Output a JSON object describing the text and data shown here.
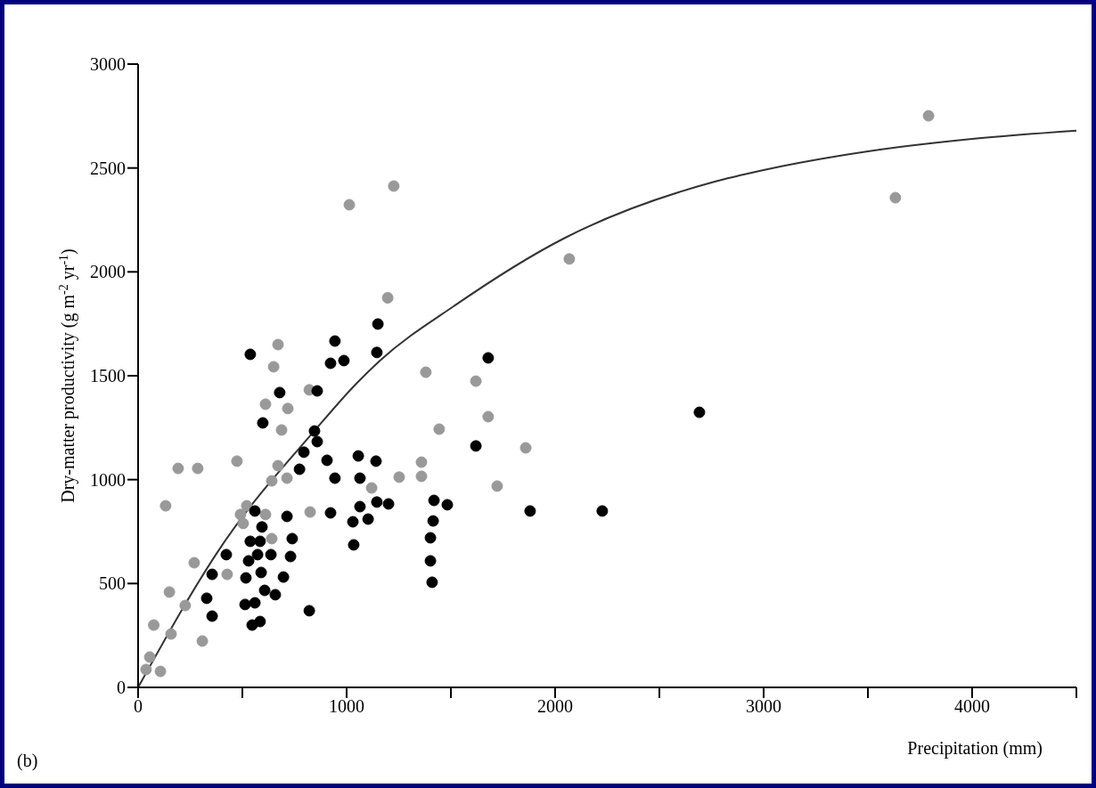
{
  "chart_data": {
    "type": "scatter",
    "xlabel": "Precipitation (mm)",
    "ylabel": "Dry-matter productivity (g m$^{-2}$ yr$^{-1}$)",
    "annotations": [
      "(b)"
    ],
    "xlim": [
      0,
      4500
    ],
    "ylim": [
      0,
      3000
    ],
    "xticks": [
      0,
      {
        "value": 500,
        "label": null
      },
      1000,
      {
        "value": 1500,
        "label": null
      },
      2000,
      {
        "value": 2500,
        "label": null
      },
      3000,
      {
        "value": 3500,
        "label": null
      },
      4000,
      {
        "value": 4500,
        "label": null
      }
    ],
    "yticks": [
      0,
      500,
      1000,
      1500,
      2000,
      2500,
      3000
    ],
    "grid": false,
    "legend": false,
    "marker": "circle",
    "series": [
      {
        "color": "#999999",
        "x": [
          38,
          107,
          56,
          75,
          132,
          150,
          158,
          192,
          226,
          286,
          269,
          308,
          474,
          671,
          650,
          821,
          611,
          718,
          688,
          671,
          714,
          641,
          521,
          491,
          611,
          504,
          641,
          825,
          1120,
          427,
          1197,
          1226,
          1013,
          1380,
          1620,
          2068,
          1679,
          1444,
          1859,
          1359,
          1359,
          1252,
          1722,
          3791,
          3632
        ],
        "values": [
          86,
          77,
          146,
          300,
          874,
          459,
          257,
          1054,
          394,
          1054,
          600,
          223,
          1089,
          1650,
          1543,
          1432,
          1363,
          1342,
          1239,
          1067,
          1007,
          994,
          874,
          832,
          832,
          789,
          716,
          844,
          960,
          544,
          1875,
          2413,
          2323,
          1517,
          1474,
          2062,
          1303,
          1243,
          1153,
          1084,
          1016,
          1012,
          969,
          2751,
          2357
        ]
      },
      {
        "color": "#000000",
        "x": [
          538,
          944,
          923,
          987,
          1150,
          1145,
          679,
          859,
          598,
          846,
          859,
          795,
          774,
          906,
          1056,
          1141,
          944,
          1064,
          1145,
          1201,
          1064,
          1103,
          1030,
          1034,
          923,
          714,
          560,
          594,
          739,
          538,
          585,
          423,
          530,
          573,
          637,
          731,
          355,
          517,
          590,
          697,
          607,
          658,
          329,
          513,
          560,
          355,
          821,
          547,
          585,
          1679,
          2692,
          1620,
          1419,
          1483,
          1415,
          1402,
          1402,
          1410,
          1880,
          2226
        ],
        "values": [
          1603,
          1667,
          1560,
          1573,
          1749,
          1612,
          1419,
          1427,
          1273,
          1234,
          1183,
          1132,
          1050,
          1093,
          1114,
          1089,
          1007,
          1007,
          892,
          883,
          870,
          810,
          797,
          686,
          840,
          823,
          849,
          772,
          716,
          703,
          703,
          639,
          609,
          639,
          639,
          630,
          544,
          527,
          553,
          531,
          467,
          446,
          429,
          399,
          407,
          343,
          369,
          300,
          317,
          1586,
          1324,
          1162,
          900,
          879,
          801,
          720,
          609,
          506,
          849,
          849
        ]
      },
      {
        "type": "line",
        "marker": "none",
        "line_style": "solid",
        "color": "#333333",
        "x": [
          0,
          400,
          850,
          1050,
          1160,
          1520,
          2040,
          2750,
          3000,
          3500,
          4000,
          4500
        ],
        "values": [
          0,
          680,
          1240,
          1466,
          1573,
          1839,
          2160,
          2430,
          2490,
          2580,
          2640,
          2680
        ]
      }
    ]
  }
}
